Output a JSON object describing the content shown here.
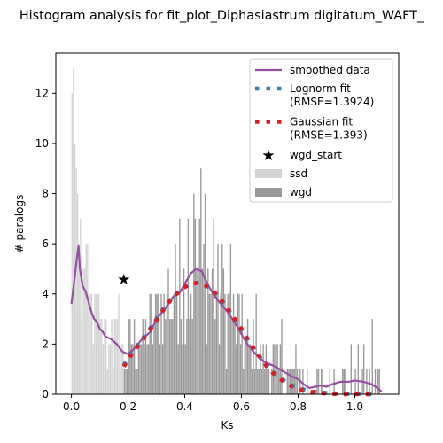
{
  "chart_data": {
    "type": "histogram",
    "title": "Histogram analysis for fit_plot_Diphasiastrum digitatum_WAFT_",
    "xlabel": "Ks",
    "ylabel": "# paralogs",
    "xlim": [
      -0.055,
      1.155
    ],
    "ylim": [
      0,
      13.6
    ],
    "xticks": [
      0.0,
      0.2,
      0.4,
      0.6,
      0.8,
      1.0
    ],
    "xtick_labels": [
      "0.0",
      "0.2",
      "0.4",
      "0.6",
      "0.8",
      "1.0"
    ],
    "yticks": [
      0,
      2,
      4,
      6,
      8,
      10,
      12
    ],
    "ytick_labels": [
      "0",
      "2",
      "4",
      "6",
      "8",
      "10",
      "12"
    ],
    "grid": false,
    "legend_position": "top-right",
    "colors": {
      "smoothed": "#984ea3",
      "lognorm": "#377eb8",
      "gaussian": "#e41a1c",
      "wgd_start": "#000000",
      "ssd": "#d3d3d3",
      "wgd": "#999999"
    },
    "legend": [
      {
        "key": "smoothed",
        "lines": [
          "smoothed data"
        ],
        "marker": "line"
      },
      {
        "key": "lognorm",
        "lines": [
          "Lognorm fit",
          "(RMSE=1.3924)"
        ],
        "marker": "dotted"
      },
      {
        "key": "gaussian",
        "lines": [
          "Gaussian fit",
          "(RMSE=1.393)"
        ],
        "marker": "dotted"
      },
      {
        "key": "wgd_start",
        "lines": [
          "wgd_start"
        ],
        "marker": "star"
      },
      {
        "key": "ssd",
        "lines": [
          "ssd"
        ],
        "marker": "patch"
      },
      {
        "key": "wgd",
        "lines": [
          "wgd"
        ],
        "marker": "patch"
      }
    ],
    "histogram": {
      "bin_width": 0.005,
      "ssd_range": [
        0.0,
        0.185
      ],
      "wgd_range": [
        0.185,
        1.095
      ],
      "ssd_peaks": [
        {
          "x": 0.0,
          "value": 12.0
        },
        {
          "x": 0.005,
          "value": 13.0
        },
        {
          "x": 0.01,
          "value": 10.0
        },
        {
          "x": 0.015,
          "value": 9.0
        },
        {
          "x": 0.02,
          "value": 8.0
        },
        {
          "x": 0.03,
          "value": 7.0
        },
        {
          "x": 0.04,
          "value": 5.0
        },
        {
          "x": 0.05,
          "value": 6.0
        },
        {
          "x": 0.06,
          "value": 4.0
        },
        {
          "x": 0.08,
          "value": 4.0
        },
        {
          "x": 0.1,
          "value": 3.0
        },
        {
          "x": 0.12,
          "value": 3.0
        },
        {
          "x": 0.14,
          "value": 3.0
        },
        {
          "x": 0.165,
          "value": 4.0
        }
      ],
      "wgd_peaks": [
        {
          "x": 0.3,
          "value": 4.0
        },
        {
          "x": 0.34,
          "value": 5.0
        },
        {
          "x": 0.38,
          "value": 7.0
        },
        {
          "x": 0.41,
          "value": 7.0
        },
        {
          "x": 0.43,
          "value": 8.0
        },
        {
          "x": 0.455,
          "value": 9.0
        },
        {
          "x": 0.47,
          "value": 8.0
        },
        {
          "x": 0.5,
          "value": 7.0
        },
        {
          "x": 0.53,
          "value": 6.0
        },
        {
          "x": 0.56,
          "value": 6.0
        },
        {
          "x": 0.6,
          "value": 4.0
        },
        {
          "x": 0.65,
          "value": 4.0
        },
        {
          "x": 0.74,
          "value": 3.0
        },
        {
          "x": 1.06,
          "value": 3.0
        }
      ]
    },
    "series": [
      {
        "key": "smoothed",
        "style": "line",
        "x": [
          0.0,
          0.01,
          0.02,
          0.025,
          0.03,
          0.04,
          0.05,
          0.06,
          0.07,
          0.08,
          0.09,
          0.1,
          0.11,
          0.12,
          0.14,
          0.16,
          0.18,
          0.2,
          0.22,
          0.25,
          0.28,
          0.3,
          0.33,
          0.36,
          0.38,
          0.4,
          0.42,
          0.44,
          0.46,
          0.48,
          0.5,
          0.52,
          0.55,
          0.58,
          0.6,
          0.62,
          0.65,
          0.68,
          0.7,
          0.72,
          0.75,
          0.78,
          0.8,
          0.82,
          0.84,
          0.86,
          0.88,
          0.9,
          0.92,
          0.95,
          0.98,
          1.0,
          1.03,
          1.06,
          1.08,
          1.095
        ],
        "y": [
          3.6,
          4.5,
          5.5,
          5.9,
          5.0,
          4.3,
          4.1,
          3.7,
          3.3,
          3.0,
          2.9,
          2.6,
          2.5,
          2.3,
          2.2,
          2.0,
          1.7,
          1.6,
          1.8,
          2.2,
          2.5,
          3.0,
          3.4,
          3.9,
          4.0,
          4.4,
          4.8,
          5.0,
          4.9,
          4.4,
          4.0,
          3.7,
          3.3,
          2.8,
          2.4,
          2.0,
          1.6,
          1.3,
          1.2,
          1.1,
          0.9,
          0.7,
          0.6,
          0.4,
          0.25,
          0.3,
          0.35,
          0.3,
          0.4,
          0.5,
          0.5,
          0.55,
          0.5,
          0.4,
          0.25,
          0.1
        ]
      },
      {
        "key": "lognorm",
        "style": "dotted",
        "x": [
          0.185,
          0.21,
          0.24,
          0.27,
          0.3,
          0.33,
          0.36,
          0.39,
          0.42,
          0.45,
          0.48,
          0.51,
          0.54,
          0.57,
          0.6,
          0.63,
          0.66,
          0.69,
          0.72,
          0.75,
          0.78,
          0.81,
          0.84,
          0.87,
          0.9,
          0.93,
          0.96,
          0.99,
          1.02,
          1.05,
          1.08
        ],
        "y": [
          1.15,
          1.6,
          2.05,
          2.5,
          3.0,
          3.5,
          3.9,
          4.2,
          4.4,
          4.45,
          4.3,
          4.0,
          3.6,
          3.1,
          2.6,
          2.05,
          1.55,
          1.15,
          0.8,
          0.55,
          0.35,
          0.22,
          0.13,
          0.08,
          0.05,
          0.03,
          0.02,
          0.01,
          0.01,
          0.0,
          0.0
        ]
      },
      {
        "key": "gaussian",
        "style": "dotted",
        "x": [
          0.185,
          0.21,
          0.24,
          0.27,
          0.3,
          0.33,
          0.36,
          0.39,
          0.42,
          0.45,
          0.48,
          0.51,
          0.54,
          0.57,
          0.6,
          0.63,
          0.66,
          0.69,
          0.72,
          0.75,
          0.78,
          0.81,
          0.84,
          0.87,
          0.9,
          0.93,
          0.96,
          0.99,
          1.02,
          1.05,
          1.08
        ],
        "y": [
          1.1,
          1.55,
          2.0,
          2.45,
          2.95,
          3.45,
          3.9,
          4.2,
          4.4,
          4.45,
          4.3,
          4.0,
          3.6,
          3.1,
          2.6,
          2.05,
          1.55,
          1.1,
          0.75,
          0.5,
          0.3,
          0.18,
          0.1,
          0.05,
          0.03,
          0.01,
          0.0,
          0.0,
          0.0,
          0.0,
          0.0
        ]
      },
      {
        "key": "wgd_start",
        "style": "star",
        "x": [
          0.185
        ],
        "y": [
          4.6
        ]
      }
    ]
  }
}
